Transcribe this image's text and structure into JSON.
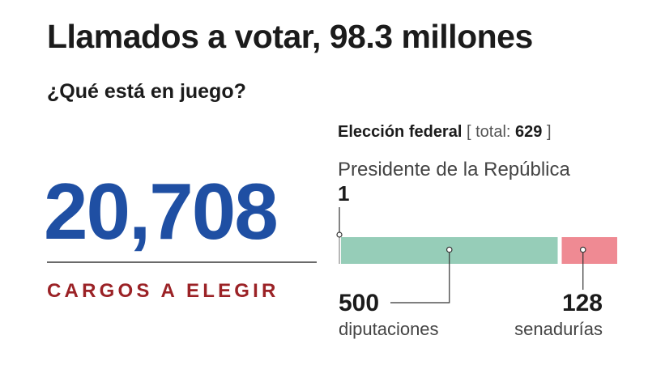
{
  "header": {
    "title": "Llamados a votar, 98.3 millones",
    "subtitle": "¿Qué está en juego?"
  },
  "summary": {
    "total_positions": "20,708",
    "label": "CARGOS A ELEGIR"
  },
  "chart_data": {
    "type": "bar",
    "orientation": "horizontal-stacked",
    "title": "Elección federal",
    "total_label": "total:",
    "total": 629,
    "categories": [
      "Presidente de la República",
      "diputaciones",
      "senadurías"
    ],
    "values": [
      1,
      500,
      128
    ],
    "value_labels": [
      "1",
      "500",
      "128"
    ],
    "colors": [
      "#9a9a9a",
      "#96cdb8",
      "#ef8a93"
    ]
  }
}
